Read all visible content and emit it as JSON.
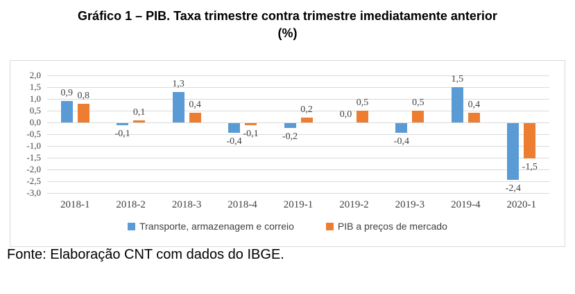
{
  "title": {
    "line1": "Gráfico 1 – PIB. Taxa trimestre contra trimestre imediatamente anterior",
    "line2": "(%)"
  },
  "footer": {
    "text": "Fonte: Elaboração CNT com dados do IBGE."
  },
  "chart_data": {
    "type": "bar",
    "title": "Gráfico 1 – PIB. Taxa trimestre contra trimestre imediatamente anterior (%)",
    "categories": [
      "2018-1",
      "2018-2",
      "2018-3",
      "2018-4",
      "2019-1",
      "2019-2",
      "2019-3",
      "2019-4",
      "2020-1"
    ],
    "series": [
      {
        "name": "Transporte, armazenagem e correio",
        "color": "#5B9BD5",
        "values": [
          0.9,
          -0.1,
          1.3,
          -0.4,
          -0.2,
          0.0,
          -0.4,
          1.5,
          -2.4
        ]
      },
      {
        "name": "PIB a preços de mercado",
        "color": "#ED7D31",
        "values": [
          0.8,
          0.1,
          0.4,
          -0.1,
          0.2,
          0.5,
          0.5,
          0.4,
          -1.5
        ]
      }
    ],
    "ylim": [
      -3.0,
      2.0
    ],
    "ytick_step": 0.5,
    "grid": true,
    "legend_position": "bottom",
    "decimal_separator": ",",
    "gridline_color": "#D9D9D9",
    "text_color": "#404040",
    "xlabel": "",
    "ylabel": ""
  }
}
